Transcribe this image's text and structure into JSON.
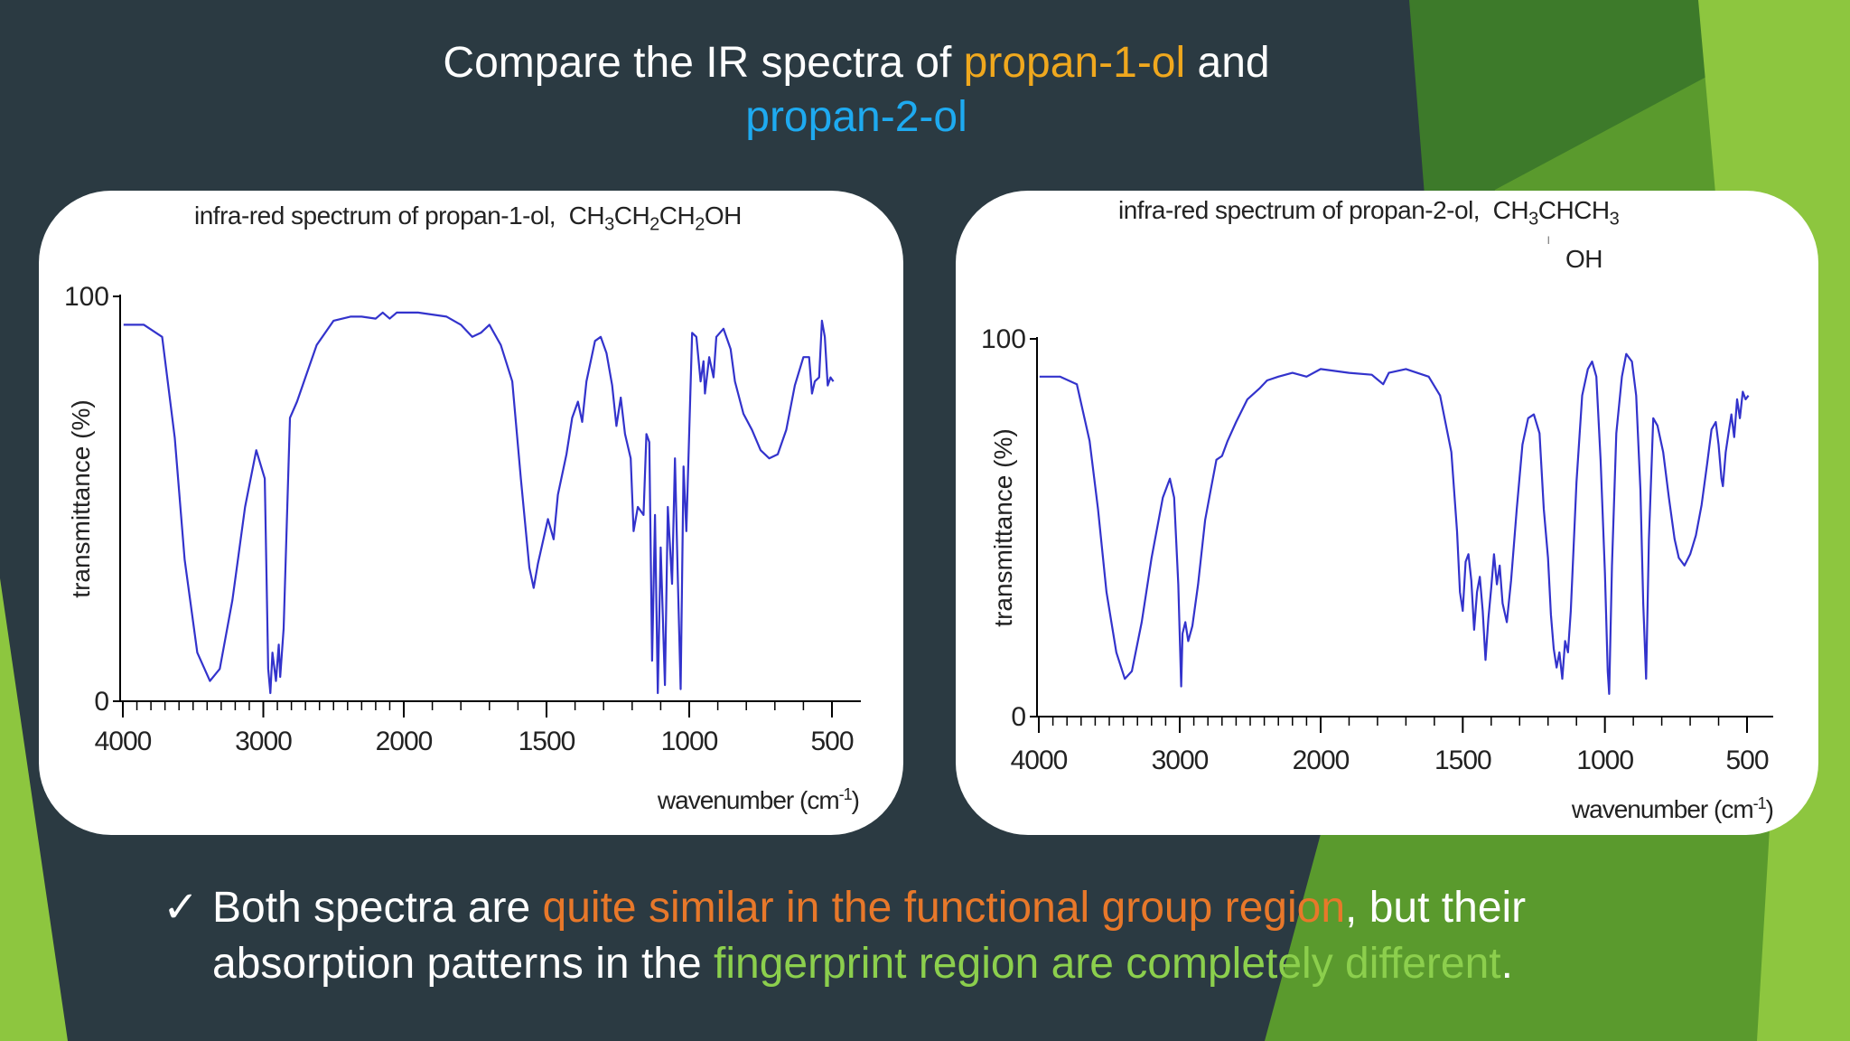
{
  "slide": {
    "title_part1": "Compare the IR spectra of ",
    "title_mol1": "propan-1-ol",
    "title_part2": " and",
    "title_mol2": "propan-2-ol",
    "bullet_mark": "✓",
    "bullet_part1": "Both spectra are ",
    "bullet_highlight1": "quite similar in the functional group region",
    "bullet_part2": ", but their absorption patterns in the ",
    "bullet_highlight2": "fingerprint region are completely different",
    "bullet_end": ".",
    "colors": {
      "background": "#2b3a42",
      "accent_green": "#8dc63f",
      "orange": "#f0a81e",
      "blue": "#1eaaf0",
      "highlight_orange": "#e8782a",
      "highlight_green": "#8ccf4d",
      "trace": "#3333cc"
    }
  },
  "chart_data": [
    {
      "type": "line",
      "title": "infra-red spectrum of propan-1-ol,",
      "formula": [
        "CH",
        "3",
        "CH",
        "2",
        "CH",
        "2",
        "OH"
      ],
      "xlabel": "wavenumber (cm",
      "xlabel_sup": "-1",
      "xlabel_end": ")",
      "ylabel": "transmittance (%)",
      "y_ticks": [
        "100",
        "0"
      ],
      "x_ticks": [
        "4000",
        "3000",
        "2000",
        "1500",
        "1000",
        "500"
      ],
      "ylim": [
        0,
        100
      ],
      "series": [
        {
          "points": [
            [
              3995,
              93
            ],
            [
              3850,
              93
            ],
            [
              3720,
              90
            ],
            [
              3630,
              65
            ],
            [
              3560,
              35
            ],
            [
              3470,
              12
            ],
            [
              3380,
              5
            ],
            [
              3310,
              8
            ],
            [
              3220,
              25
            ],
            [
              3130,
              48
            ],
            [
              3050,
              62
            ],
            [
              2990,
              55
            ],
            [
              2965,
              8
            ],
            [
              2950,
              2
            ],
            [
              2935,
              12
            ],
            [
              2910,
              5
            ],
            [
              2890,
              14
            ],
            [
              2880,
              6
            ],
            [
              2855,
              18
            ],
            [
              2810,
              70
            ],
            [
              2760,
              74
            ],
            [
              2700,
              80
            ],
            [
              2620,
              88
            ],
            [
              2500,
              94
            ],
            [
              2380,
              95
            ],
            [
              2300,
              95
            ],
            [
              2200,
              94.5
            ],
            [
              2150,
              96
            ],
            [
              2100,
              94.5
            ],
            [
              2050,
              96
            ],
            [
              1950,
              96
            ],
            [
              1850,
              95
            ],
            [
              1800,
              93
            ],
            [
              1760,
              90
            ],
            [
              1730,
              91
            ],
            [
              1700,
              93
            ],
            [
              1660,
              88
            ],
            [
              1620,
              79
            ],
            [
              1590,
              55
            ],
            [
              1560,
              33
            ],
            [
              1545,
              28
            ],
            [
              1530,
              34
            ],
            [
              1495,
              45
            ],
            [
              1475,
              40
            ],
            [
              1460,
              51
            ],
            [
              1430,
              61
            ],
            [
              1410,
              70
            ],
            [
              1390,
              74
            ],
            [
              1375,
              69
            ],
            [
              1360,
              79
            ],
            [
              1330,
              89
            ],
            [
              1310,
              90
            ],
            [
              1290,
              86
            ],
            [
              1270,
              78
            ],
            [
              1255,
              68
            ],
            [
              1240,
              75
            ],
            [
              1225,
              66
            ],
            [
              1205,
              60
            ],
            [
              1195,
              42
            ],
            [
              1180,
              48
            ],
            [
              1160,
              46
            ],
            [
              1150,
              66
            ],
            [
              1140,
              64
            ],
            [
              1130,
              10
            ],
            [
              1120,
              46
            ],
            [
              1110,
              2
            ],
            [
              1100,
              38
            ],
            [
              1085,
              4
            ],
            [
              1075,
              48
            ],
            [
              1060,
              29
            ],
            [
              1050,
              60
            ],
            [
              1040,
              30
            ],
            [
              1030,
              3
            ],
            [
              1020,
              58
            ],
            [
              1010,
              42
            ],
            [
              990,
              91
            ],
            [
              975,
              90
            ],
            [
              960,
              79
            ],
            [
              950,
              84
            ],
            [
              945,
              76
            ],
            [
              930,
              85
            ],
            [
              915,
              80
            ],
            [
              905,
              90
            ],
            [
              880,
              92
            ],
            [
              855,
              87
            ],
            [
              840,
              79
            ],
            [
              810,
              71
            ],
            [
              780,
              67
            ],
            [
              750,
              62
            ],
            [
              720,
              60
            ],
            [
              690,
              61
            ],
            [
              660,
              67
            ],
            [
              630,
              78
            ],
            [
              600,
              85
            ],
            [
              580,
              85
            ],
            [
              570,
              76
            ],
            [
              560,
              79
            ],
            [
              545,
              80
            ],
            [
              535,
              94
            ],
            [
              525,
              90
            ],
            [
              515,
              78
            ],
            [
              505,
              80
            ],
            [
              495,
              79
            ]
          ],
          "points_note": "x in cm-1, y in % transmittance"
        }
      ]
    },
    {
      "type": "line",
      "title": "infra-red spectrum of propan-2-ol,",
      "formula": [
        "CH",
        "3",
        "CHCH",
        "3"
      ],
      "formula_branch": "OH",
      "xlabel": "wavenumber (cm",
      "xlabel_sup": "-1",
      "xlabel_end": ")",
      "ylabel": "transmittance (%)",
      "y_ticks": [
        "100",
        "0"
      ],
      "x_ticks": [
        "4000",
        "3000",
        "2000",
        "1500",
        "1000",
        "500"
      ],
      "ylim": [
        0,
        100
      ],
      "series": [
        {
          "points": [
            [
              3995,
              90
            ],
            [
              3850,
              90
            ],
            [
              3730,
              88
            ],
            [
              3640,
              73
            ],
            [
              3580,
              55
            ],
            [
              3520,
              33
            ],
            [
              3450,
              17
            ],
            [
              3390,
              10
            ],
            [
              3340,
              12
            ],
            [
              3270,
              25
            ],
            [
              3200,
              42
            ],
            [
              3120,
              58
            ],
            [
              3070,
              63
            ],
            [
              3040,
              58
            ],
            [
              3010,
              35
            ],
            [
              2990,
              8
            ],
            [
              2980,
              22
            ],
            [
              2960,
              25
            ],
            [
              2940,
              20
            ],
            [
              2910,
              24
            ],
            [
              2870,
              35
            ],
            [
              2820,
              52
            ],
            [
              2780,
              60
            ],
            [
              2740,
              68
            ],
            [
              2700,
              69
            ],
            [
              2660,
              73
            ],
            [
              2600,
              78
            ],
            [
              2520,
              84
            ],
            [
              2430,
              87
            ],
            [
              2380,
              89
            ],
            [
              2300,
              90
            ],
            [
              2200,
              91
            ],
            [
              2100,
              90
            ],
            [
              2000,
              92
            ],
            [
              1900,
              91
            ],
            [
              1820,
              90.5
            ],
            [
              1780,
              88
            ],
            [
              1760,
              91
            ],
            [
              1700,
              92
            ],
            [
              1620,
              90
            ],
            [
              1580,
              85
            ],
            [
              1540,
              70
            ],
            [
              1520,
              49
            ],
            [
              1510,
              33
            ],
            [
              1500,
              28
            ],
            [
              1490,
              41
            ],
            [
              1480,
              43
            ],
            [
              1470,
              36
            ],
            [
              1460,
              23
            ],
            [
              1450,
              33
            ],
            [
              1440,
              37
            ],
            [
              1430,
              28
            ],
            [
              1420,
              15
            ],
            [
              1410,
              26
            ],
            [
              1400,
              34
            ],
            [
              1390,
              43
            ],
            [
              1380,
              35
            ],
            [
              1370,
              40
            ],
            [
              1360,
              30
            ],
            [
              1345,
              25
            ],
            [
              1330,
              36
            ],
            [
              1310,
              55
            ],
            [
              1290,
              72
            ],
            [
              1270,
              79
            ],
            [
              1250,
              80
            ],
            [
              1230,
              75
            ],
            [
              1215,
              55
            ],
            [
              1200,
              42
            ],
            [
              1190,
              27
            ],
            [
              1180,
              18
            ],
            [
              1170,
              13
            ],
            [
              1160,
              17
            ],
            [
              1150,
              10
            ],
            [
              1140,
              20
            ],
            [
              1130,
              17
            ],
            [
              1120,
              28
            ],
            [
              1100,
              62
            ],
            [
              1080,
              85
            ],
            [
              1060,
              92
            ],
            [
              1045,
              94
            ],
            [
              1030,
              90
            ],
            [
              1015,
              68
            ],
            [
              1000,
              38
            ],
            [
              990,
              12
            ],
            [
              985,
              6
            ],
            [
              975,
              40
            ],
            [
              960,
              75
            ],
            [
              940,
              90
            ],
            [
              925,
              96
            ],
            [
              905,
              94
            ],
            [
              890,
              85
            ],
            [
              875,
              60
            ],
            [
              865,
              30
            ],
            [
              855,
              10
            ],
            [
              845,
              47
            ],
            [
              830,
              79
            ],
            [
              815,
              77
            ],
            [
              795,
              70
            ],
            [
              775,
              58
            ],
            [
              755,
              47
            ],
            [
              740,
              42
            ],
            [
              720,
              40
            ],
            [
              700,
              43
            ],
            [
              680,
              48
            ],
            [
              660,
              56
            ],
            [
              640,
              67
            ],
            [
              625,
              76
            ],
            [
              610,
              78
            ],
            [
              600,
              72
            ],
            [
              590,
              63
            ],
            [
              585,
              61
            ],
            [
              575,
              70
            ],
            [
              565,
              75
            ],
            [
              555,
              80
            ],
            [
              545,
              74
            ],
            [
              535,
              84
            ],
            [
              525,
              79
            ],
            [
              515,
              86
            ],
            [
              505,
              84
            ],
            [
              495,
              85
            ]
          ],
          "points_note": "x in cm-1, y in % transmittance"
        }
      ]
    }
  ]
}
